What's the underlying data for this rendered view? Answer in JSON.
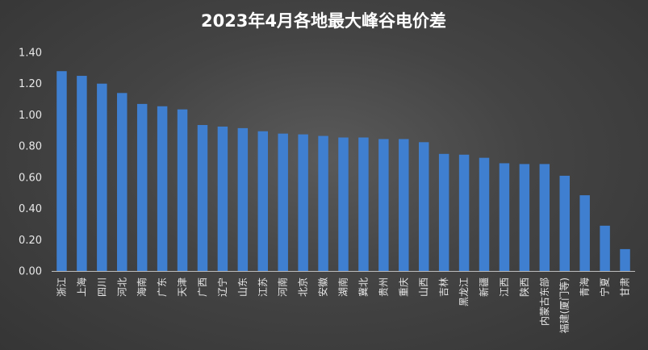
{
  "chart_data": {
    "type": "bar",
    "title": "2023年4月各地最大峰谷电价差",
    "xlabel": "",
    "ylabel": "",
    "ylim": [
      0,
      1.4
    ],
    "yticks": [
      "0.00",
      "0.20",
      "0.40",
      "0.60",
      "0.80",
      "1.00",
      "1.20",
      "1.40"
    ],
    "grid": false,
    "bar_color": "#3f7fd0",
    "categories": [
      "浙江",
      "上海",
      "四川",
      "河北",
      "海南",
      "广东",
      "天津",
      "广西",
      "辽宁",
      "山东",
      "江苏",
      "河南",
      "北京",
      "安徽",
      "湖南",
      "冀北",
      "贵州",
      "重庆",
      "山西",
      "吉林",
      "黑龙江",
      "新疆",
      "江西",
      "陕西",
      "内蒙古东部",
      "福建(厦门等)",
      "青海",
      "宁夏",
      "甘肃"
    ],
    "values": [
      1.28,
      1.25,
      1.2,
      1.14,
      1.07,
      1.055,
      1.035,
      0.935,
      0.925,
      0.915,
      0.895,
      0.88,
      0.875,
      0.865,
      0.855,
      0.855,
      0.845,
      0.845,
      0.825,
      0.75,
      0.745,
      0.725,
      0.69,
      0.685,
      0.685,
      0.61,
      0.485,
      0.29,
      0.14
    ]
  }
}
